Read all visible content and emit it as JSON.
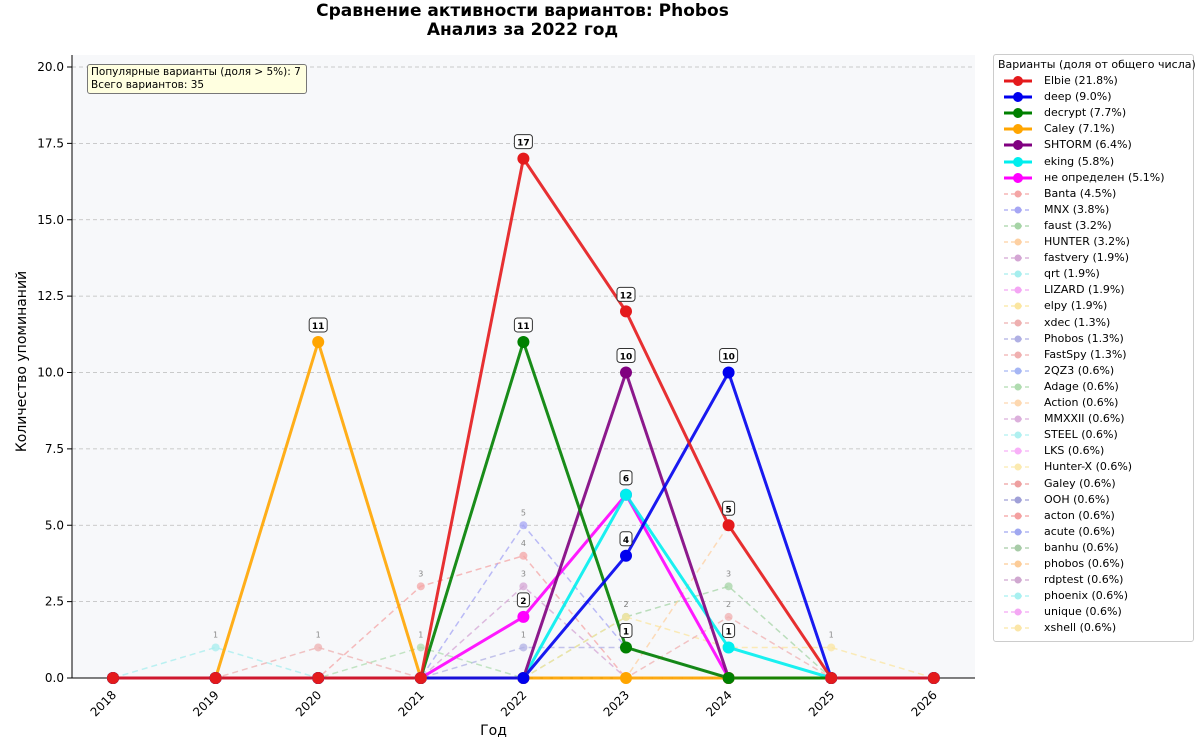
{
  "chart_data": {
    "type": "line",
    "title": "Сравнение активности вариантов: Phobos",
    "subtitle": "Анализ за 2022 год",
    "xlabel": "Год",
    "ylabel": "Количество упоминаний",
    "x": [
      "2018",
      "2019",
      "2020",
      "2021",
      "2022",
      "2023",
      "2024",
      "2025",
      "2026"
    ],
    "ylim": [
      0,
      20.5
    ],
    "yticks": [
      "0.0",
      "2.5",
      "5.0",
      "7.5",
      "10.0",
      "12.5",
      "15.0",
      "17.5",
      "20.0"
    ],
    "grid": "horizontal dashed",
    "legend_position": "outside right",
    "legend_title": "Варианты (доля от общего числа)",
    "info_box": {
      "line1": "Популярные варианты (доля > 5%): 7",
      "line2": "Всего вариантов: 35"
    },
    "series": [
      {
        "name": "Elbie (21.8%)",
        "color": "#e41a1c",
        "major": true,
        "values": [
          0,
          0,
          0,
          0,
          17,
          12,
          5,
          0,
          0
        ]
      },
      {
        "name": "deep (9.0%)",
        "color": "#0000ee",
        "major": true,
        "values": [
          0,
          0,
          0,
          0,
          0,
          4,
          10,
          0,
          0
        ]
      },
      {
        "name": "decrypt (7.7%)",
        "color": "#008000",
        "major": true,
        "values": [
          0,
          0,
          0,
          0,
          11,
          1,
          0,
          0,
          0
        ]
      },
      {
        "name": "Caley (7.1%)",
        "color": "#ffa500",
        "major": true,
        "values": [
          0,
          0,
          11,
          0,
          0,
          0,
          0,
          0,
          0
        ]
      },
      {
        "name": "SHTORM (6.4%)",
        "color": "#800080",
        "major": true,
        "values": [
          0,
          0,
          0,
          0,
          0,
          10,
          0,
          0,
          0
        ]
      },
      {
        "name": "eking (5.8%)",
        "color": "#00eeee",
        "major": true,
        "values": [
          0,
          0,
          0,
          0,
          0,
          6,
          1,
          0,
          0
        ]
      },
      {
        "name": "не определен (5.1%)",
        "color": "#ff00ff",
        "major": true,
        "values": [
          0,
          0,
          0,
          0,
          2,
          6,
          0,
          0,
          0
        ]
      },
      {
        "name": "Banta (4.5%)",
        "color": "#f4a6a6",
        "major": false,
        "values": [
          0,
          0,
          0,
          3,
          4,
          0,
          0,
          0,
          0
        ]
      },
      {
        "name": "MNX (3.8%)",
        "color": "#a6a6f4",
        "major": false,
        "values": [
          0,
          0,
          0,
          0,
          5,
          1,
          0,
          0,
          0
        ]
      },
      {
        "name": "faust (3.2%)",
        "color": "#a6d4a6",
        "major": false,
        "values": [
          0,
          0,
          0,
          0,
          0,
          2,
          3,
          0,
          0
        ]
      },
      {
        "name": "HUNTER (3.2%)",
        "color": "#fdd0a2",
        "major": false,
        "values": [
          0,
          0,
          0,
          0,
          0,
          0,
          5,
          0,
          0
        ]
      },
      {
        "name": "fastvery (1.9%)",
        "color": "#d4a6d4",
        "major": false,
        "values": [
          0,
          0,
          0,
          0,
          3,
          0,
          0,
          0,
          0
        ]
      },
      {
        "name": "qrt (1.9%)",
        "color": "#a6eeee",
        "major": false,
        "values": [
          0,
          1,
          0,
          0,
          0,
          0,
          0,
          0,
          0
        ]
      },
      {
        "name": "LIZARD (1.9%)",
        "color": "#f4a6f4",
        "major": false,
        "values": [
          0,
          0,
          0,
          0,
          0,
          0,
          0,
          0,
          0
        ]
      },
      {
        "name": "elpy (1.9%)",
        "color": "#fbe6a0",
        "major": false,
        "values": [
          0,
          0,
          0,
          0,
          0,
          2,
          1,
          1,
          0
        ]
      },
      {
        "name": "xdec (1.3%)",
        "color": "#eeb0b0",
        "major": false,
        "values": [
          0,
          0,
          1,
          0,
          0,
          0,
          0,
          0,
          0
        ]
      },
      {
        "name": "Phobos (1.3%)",
        "color": "#b0b0e4",
        "major": false,
        "values": [
          0,
          0,
          0,
          0,
          1,
          1,
          0,
          0,
          0
        ]
      },
      {
        "name": "FastSpy (1.3%)",
        "color": "#f0b0b0",
        "major": false,
        "values": [
          0,
          0,
          0,
          0,
          0,
          0,
          2,
          0,
          0
        ]
      },
      {
        "name": "2QZ3 (0.6%)",
        "color": "#a6b6f4",
        "major": false,
        "values": [
          0,
          0,
          0,
          0,
          0,
          0,
          0,
          0,
          0
        ]
      },
      {
        "name": "Adage (0.6%)",
        "color": "#b0dcb0",
        "major": false,
        "values": [
          0,
          0,
          0,
          1,
          0,
          0,
          0,
          0,
          0
        ]
      },
      {
        "name": "Action (0.6%)",
        "color": "#fdd8b0",
        "major": false,
        "values": [
          0,
          0,
          0,
          0,
          0,
          0,
          0,
          0,
          0
        ]
      },
      {
        "name": "MMXXII (0.6%)",
        "color": "#dcb0dc",
        "major": false,
        "values": [
          0,
          0,
          0,
          0,
          0,
          0,
          0,
          0,
          0
        ]
      },
      {
        "name": "STEEL (0.6%)",
        "color": "#b0f0f0",
        "major": false,
        "values": [
          0,
          0,
          0,
          0,
          0,
          0,
          0,
          0,
          0
        ]
      },
      {
        "name": "LKS (0.6%)",
        "color": "#f8b0f8",
        "major": false,
        "values": [
          0,
          0,
          0,
          0,
          0,
          0,
          0,
          0,
          0
        ]
      },
      {
        "name": "Hunter-X (0.6%)",
        "color": "#fbeab0",
        "major": false,
        "values": [
          0,
          0,
          0,
          0,
          0,
          0,
          0,
          0,
          0
        ]
      },
      {
        "name": "Galey (0.6%)",
        "color": "#eea0a0",
        "major": false,
        "values": [
          0,
          0,
          0,
          0,
          0,
          0,
          0,
          0,
          0
        ]
      },
      {
        "name": "OOH (0.6%)",
        "color": "#a0a0d8",
        "major": false,
        "values": [
          0,
          0,
          0,
          0,
          0,
          0,
          0,
          0,
          0
        ]
      },
      {
        "name": "acton (0.6%)",
        "color": "#f4a0a0",
        "major": false,
        "values": [
          0,
          0,
          0,
          0,
          0,
          0,
          0,
          0,
          0
        ]
      },
      {
        "name": "acute (0.6%)",
        "color": "#a0a8f0",
        "major": false,
        "values": [
          0,
          0,
          0,
          0,
          0,
          0,
          0,
          0,
          0
        ]
      },
      {
        "name": "banhu (0.6%)",
        "color": "#a8cca8",
        "major": false,
        "values": [
          0,
          0,
          0,
          0,
          0,
          0,
          0,
          0,
          0
        ]
      },
      {
        "name": "phobos (0.6%)",
        "color": "#fccc98",
        "major": false,
        "values": [
          0,
          0,
          0,
          0,
          0,
          0,
          0,
          0,
          0
        ]
      },
      {
        "name": "rdptest (0.6%)",
        "color": "#d0a8d0",
        "major": false,
        "values": [
          0,
          0,
          0,
          0,
          0,
          0,
          0,
          0,
          0
        ]
      },
      {
        "name": "phoenix (0.6%)",
        "color": "#a8f0f0",
        "major": false,
        "values": [
          0,
          0,
          0,
          0,
          0,
          0,
          0,
          0,
          0
        ]
      },
      {
        "name": "unique (0.6%)",
        "color": "#f4a8f4",
        "major": false,
        "values": [
          0,
          0,
          0,
          0,
          0,
          0,
          0,
          0,
          0
        ]
      },
      {
        "name": "xshell (0.6%)",
        "color": "#fbe6a8",
        "major": false,
        "values": [
          0,
          0,
          0,
          0,
          0,
          0,
          0,
          0,
          0
        ]
      }
    ]
  }
}
